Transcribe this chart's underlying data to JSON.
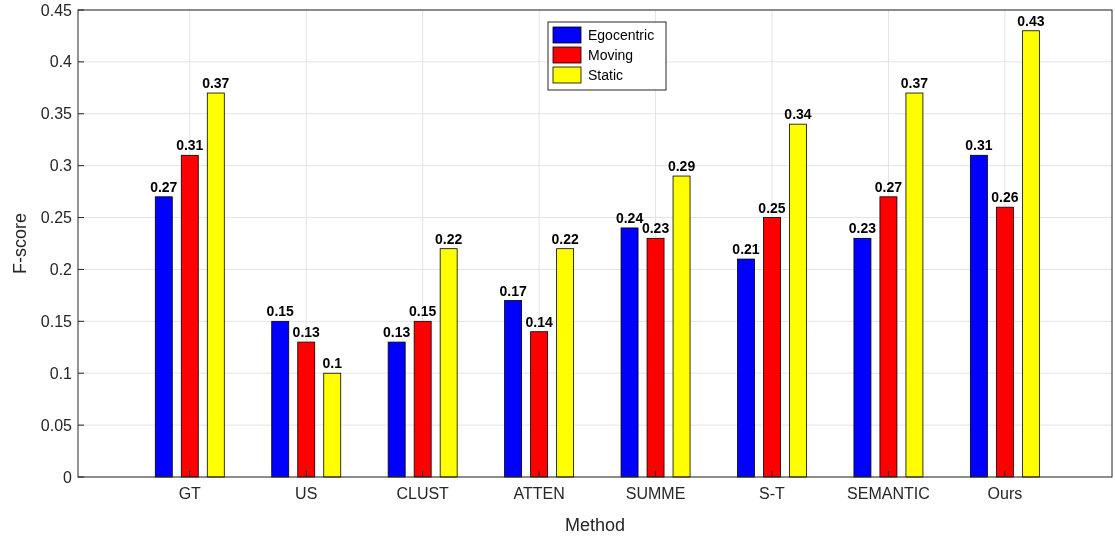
{
  "chart_data": {
    "type": "bar",
    "xlabel": "Method",
    "ylabel": "F-score",
    "categories": [
      "GT",
      "US",
      "CLUST",
      "ATTEN",
      "SUMME",
      "S-T",
      "SEMANTIC",
      "Ours"
    ],
    "series": [
      {
        "name": "Egocentric",
        "color": "#0000ff",
        "values": [
          0.27,
          0.15,
          0.13,
          0.17,
          0.24,
          0.21,
          0.23,
          0.31
        ]
      },
      {
        "name": "Moving",
        "color": "#ff0000",
        "values": [
          0.31,
          0.13,
          0.15,
          0.14,
          0.23,
          0.25,
          0.27,
          0.26
        ]
      },
      {
        "name": "Static",
        "color": "#ffff00",
        "values": [
          0.37,
          0.1,
          0.22,
          0.22,
          0.29,
          0.34,
          0.37,
          0.43
        ]
      }
    ],
    "ylim": [
      0,
      0.45
    ],
    "yticks": [
      0,
      0.05,
      0.1,
      0.15,
      0.2,
      0.25,
      0.3,
      0.35,
      0.4,
      0.45
    ],
    "grid": true,
    "legend": "top",
    "data_labels": true
  }
}
